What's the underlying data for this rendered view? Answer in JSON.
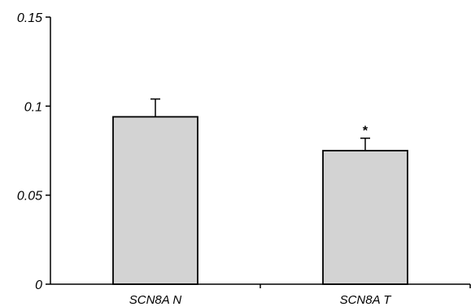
{
  "chart_data": {
    "type": "bar",
    "title": "",
    "xlabel": "",
    "ylabel": "",
    "categories": [
      "SCN8A N",
      "SCN8A T"
    ],
    "values": [
      0.094,
      0.075
    ],
    "errors": [
      0.01,
      0.007
    ],
    "annotations": [
      "",
      "*"
    ],
    "ylim": [
      0,
      0.15
    ],
    "yticks": [
      0,
      0.05,
      0.1,
      0.15
    ],
    "ytick_labels": [
      "0",
      "0.05",
      "0.1",
      "0.15"
    ],
    "grid": false,
    "legend": "none",
    "colors": {
      "bar_fill": "#d3d3d3",
      "bar_stroke": "#000000",
      "axis": "#000000"
    }
  }
}
